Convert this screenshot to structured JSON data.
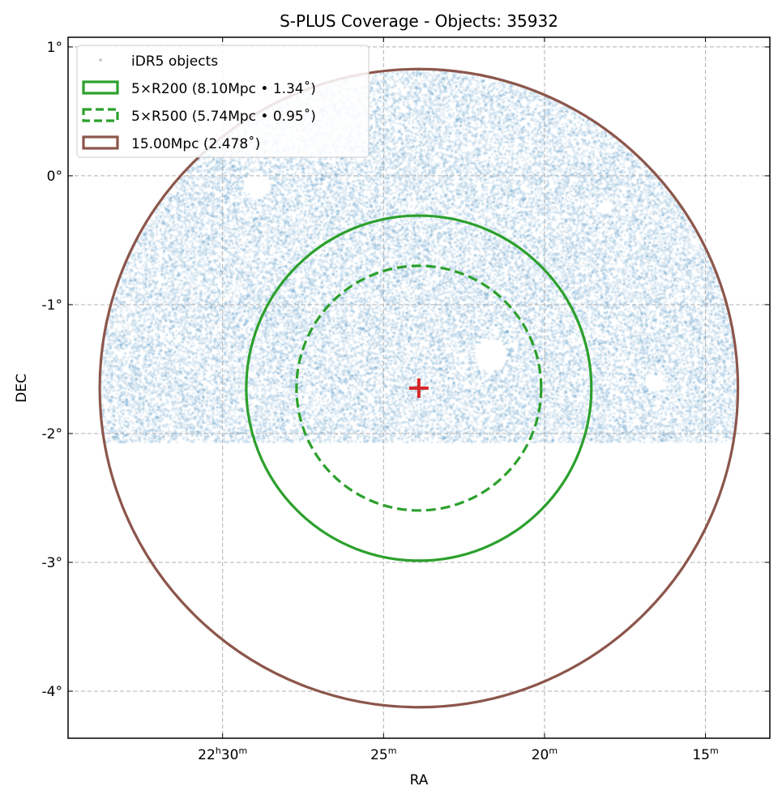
{
  "chart_data": {
    "type": "scatter",
    "title": "S-PLUS Coverage - Objects: 35932",
    "xlabel": "RA",
    "ylabel": "DEC",
    "xlim_deg": [
      338.7,
      333.25
    ],
    "ylim_deg": [
      -4.365,
      1.075
    ],
    "x_ticks": [
      {
        "value": 337.5,
        "h": "22",
        "m": "30",
        "label_h": "h",
        "label_m": "m"
      },
      {
        "value": 336.25,
        "h": "",
        "m": "25",
        "label_m": "m"
      },
      {
        "value": 335.0,
        "h": "",
        "m": "20",
        "label_m": "m"
      },
      {
        "value": 333.75,
        "h": "",
        "m": "15",
        "label_m": "m"
      }
    ],
    "y_ticks": [
      {
        "value": 1,
        "label": "1°"
      },
      {
        "value": 0,
        "label": "0°"
      },
      {
        "value": -1,
        "label": "-1°"
      },
      {
        "value": -2,
        "label": "-2°"
      },
      {
        "value": -3,
        "label": "-3°"
      },
      {
        "value": -4,
        "label": "-4°"
      }
    ],
    "grid": true,
    "center": {
      "ra": 335.976,
      "dec": -1.648,
      "marker": "plus",
      "color": "#d62728"
    },
    "scatter": {
      "name": "iDR5 objects",
      "count": 35932,
      "color": "#1f77b4",
      "dec_min": -2.07,
      "within_radius_deg": 2.478
    },
    "circles": [
      {
        "name": "5×R200 (8.10Mpc • 1.34˚)",
        "radius_deg": 1.34,
        "color": "#2ca02c",
        "style": "solid"
      },
      {
        "name": "5×R500 (5.74Mpc • 0.95˚)",
        "radius_deg": 0.95,
        "color": "#2ca02c",
        "style": "dashed"
      },
      {
        "name": "15.00Mpc (2.478˚)",
        "radius_deg": 2.478,
        "color": "#8c564b",
        "style": "solid"
      }
    ],
    "legend_placement": "upper-left"
  }
}
